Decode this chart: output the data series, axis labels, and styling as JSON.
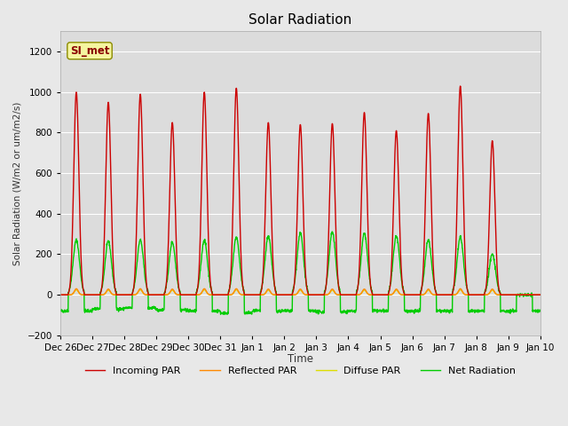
{
  "title": "Solar Radiation",
  "ylabel": "Solar Radiation (W/m2 or um/m2/s)",
  "xlabel": "Time",
  "ylim": [
    -200,
    1300
  ],
  "yticks": [
    -200,
    0,
    200,
    400,
    600,
    800,
    1000,
    1200
  ],
  "background_color": "#e8e8e8",
  "plot_bg_color": "#dcdcdc",
  "station_label": "SI_met",
  "date_labels": [
    "Dec 26",
    "Dec 27",
    "Dec 28",
    "Dec 29",
    "Dec 30",
    "Dec 31",
    "Jan 1",
    "Jan 2",
    "Jan 3",
    "Jan 4",
    "Jan 5",
    "Jan 6",
    "Jan 7",
    "Jan 8",
    "Jan 9",
    "Jan 10"
  ],
  "incoming_peaks": [
    1000,
    950,
    990,
    850,
    1000,
    1020,
    850,
    840,
    845,
    900,
    810,
    895,
    1030,
    760,
    0
  ],
  "reflected_peaks": [
    30,
    28,
    30,
    28,
    30,
    30,
    28,
    28,
    28,
    28,
    28,
    28,
    30,
    28,
    0
  ],
  "diffuse_peaks": [
    25,
    23,
    25,
    23,
    25,
    25,
    23,
    23,
    23,
    23,
    23,
    23,
    25,
    23,
    0
  ],
  "net_peaks": [
    270,
    265,
    270,
    260,
    270,
    285,
    290,
    305,
    310,
    305,
    290,
    270,
    285,
    200,
    0
  ],
  "net_night": [
    -80,
    -70,
    -65,
    -75,
    -80,
    -90,
    -80,
    -80,
    -85,
    -80,
    -80,
    -80,
    -80,
    -80,
    -80
  ],
  "series": {
    "incoming_par": {
      "color": "#cc0000",
      "label": "Incoming PAR",
      "linewidth": 1.0
    },
    "reflected_par": {
      "color": "#ff8800",
      "label": "Reflected PAR",
      "linewidth": 1.0
    },
    "diffuse_par": {
      "color": "#dddd00",
      "label": "Diffuse PAR",
      "linewidth": 1.0
    },
    "net_radiation": {
      "color": "#00cc00",
      "label": "Net Radiation",
      "linewidth": 1.0
    }
  }
}
